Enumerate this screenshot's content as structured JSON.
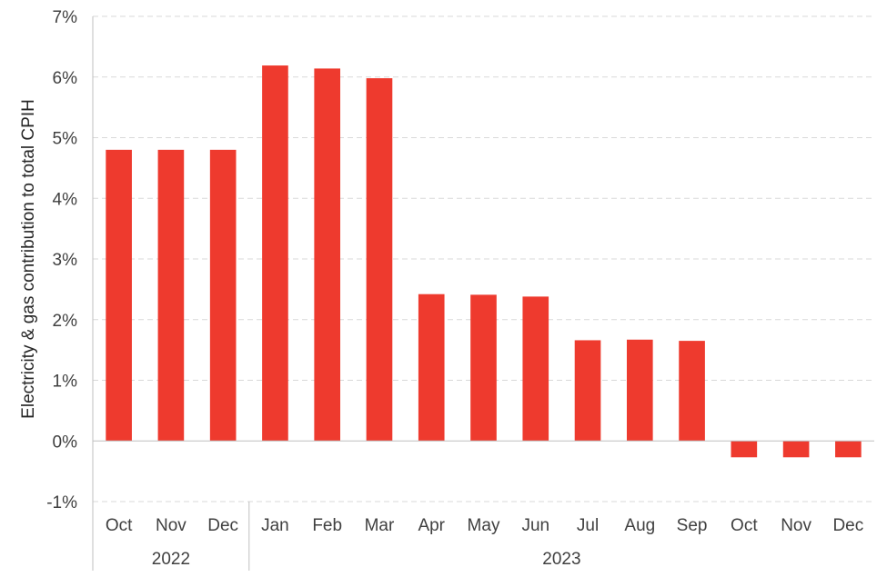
{
  "chart_data": {
    "type": "bar",
    "ylabel": "Electricity & gas contribution to total CPIH",
    "ylim": [
      -1,
      7
    ],
    "yticks": [
      "-1%",
      "0%",
      "1%",
      "2%",
      "3%",
      "4%",
      "5%",
      "6%",
      "7%"
    ],
    "grid": true,
    "bar_color": "#ee3a2e",
    "categories": [
      "Oct",
      "Nov",
      "Dec",
      "Jan",
      "Feb",
      "Mar",
      "Apr",
      "May",
      "Jun",
      "Jul",
      "Aug",
      "Sep",
      "Oct",
      "Nov",
      "Dec"
    ],
    "year_groups": [
      {
        "label": "2022",
        "count": 3
      },
      {
        "label": "2023",
        "count": 12
      }
    ],
    "values": [
      4.8,
      4.8,
      4.8,
      6.19,
      6.14,
      5.98,
      2.42,
      2.41,
      2.38,
      1.66,
      1.67,
      1.65,
      -0.27,
      -0.27,
      -0.27
    ]
  }
}
